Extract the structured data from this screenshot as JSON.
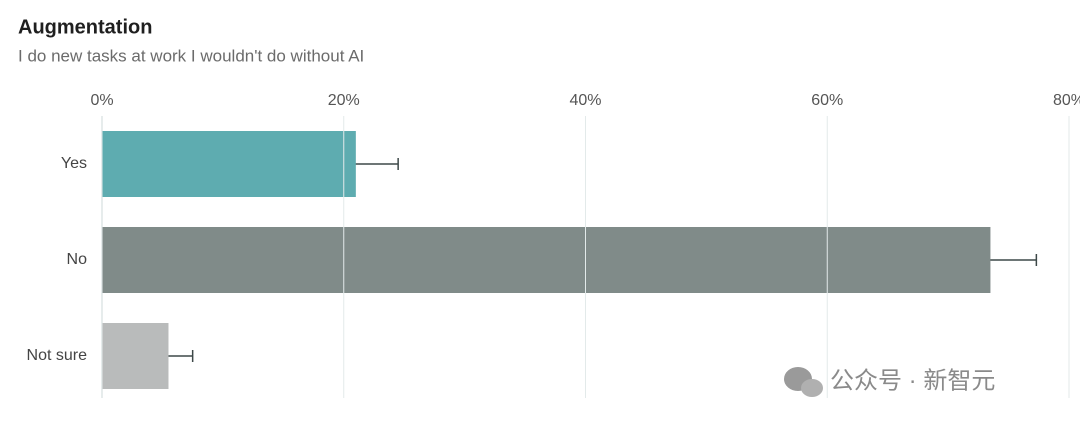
{
  "chart_data": {
    "type": "hbar",
    "title": "Augmentation",
    "subtitle": "I do new tasks at work I wouldn't do without AI",
    "categories": [
      "Yes",
      "No",
      "Not sure"
    ],
    "values": [
      21,
      73.5,
      5.5
    ],
    "errors": [
      3.5,
      3.8,
      2
    ],
    "colors": [
      "#5eacb0",
      "#808b89",
      "#b9bbbb"
    ],
    "xlim": [
      0,
      80
    ],
    "xticks": [
      {
        "value": 0,
        "label": "0%"
      },
      {
        "value": 20,
        "label": "20%"
      },
      {
        "value": 40,
        "label": "40%"
      },
      {
        "value": 60,
        "label": "60%"
      },
      {
        "value": 80,
        "label": "80%"
      }
    ],
    "grid": true,
    "watermark": "公众号 · 新智元"
  }
}
